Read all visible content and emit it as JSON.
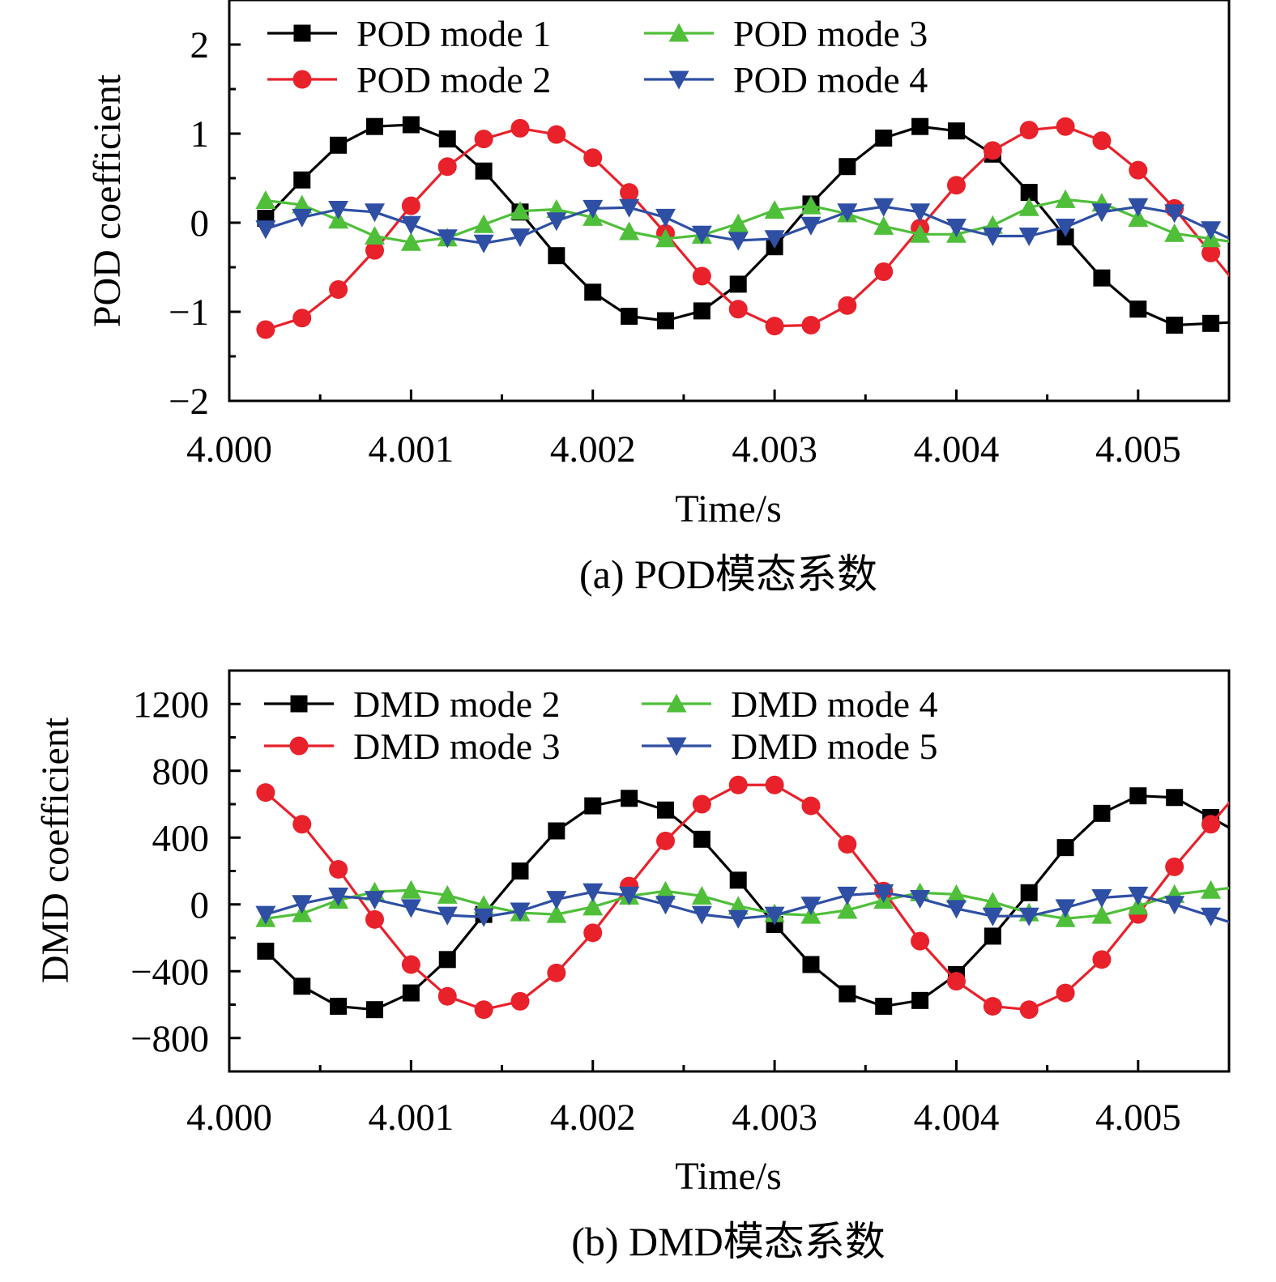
{
  "chart_data": [
    {
      "type": "line",
      "title": "",
      "caption": "(a) POD模态系数",
      "xlabel": "Time/s",
      "ylabel": "POD coefficient",
      "xlim": [
        4.0,
        4.0055
      ],
      "ylim": [
        -2,
        2.5
      ],
      "xticks": [
        4.0,
        4.001,
        4.002,
        4.003,
        4.004,
        4.005
      ],
      "xtick_labels": [
        "4.000",
        "4.001",
        "4.002",
        "4.003",
        "4.004",
        "4.005"
      ],
      "yticks": [
        -2,
        -1,
        0,
        1,
        2
      ],
      "ytick_labels": [
        "−2",
        "−1",
        "0",
        "1",
        "2"
      ],
      "legend_position": "top",
      "x": [
        4.0002,
        4.0004,
        4.0006,
        4.0008,
        4.001,
        4.0012,
        4.0014,
        4.0016,
        4.0018,
        4.002,
        4.0022,
        4.0024,
        4.0026,
        4.0028,
        4.003,
        4.0032,
        4.0034,
        4.0036,
        4.0038,
        4.004,
        4.0042,
        4.0044,
        4.0046,
        4.0048,
        4.005,
        4.0052,
        4.0054
      ],
      "series": [
        {
          "name": "POD mode 1",
          "color": "#000000",
          "marker": "square",
          "values": [
            0.05,
            0.48,
            0.87,
            1.08,
            1.1,
            0.94,
            0.58,
            0.12,
            -0.37,
            -0.78,
            -1.05,
            -1.1,
            -0.99,
            -0.69,
            -0.27,
            0.21,
            0.63,
            0.95,
            1.08,
            1.03,
            0.77,
            0.34,
            -0.16,
            -0.62,
            -0.97,
            -1.15,
            -1.13
          ]
        },
        {
          "name": "POD mode 2",
          "color": "#e8212b",
          "marker": "circle",
          "values": [
            -1.2,
            -1.07,
            -0.75,
            -0.31,
            0.19,
            0.63,
            0.94,
            1.06,
            0.99,
            0.73,
            0.34,
            -0.12,
            -0.6,
            -0.97,
            -1.16,
            -1.15,
            -0.93,
            -0.55,
            -0.06,
            0.42,
            0.81,
            1.04,
            1.08,
            0.92,
            0.59,
            0.16,
            -0.34
          ]
        },
        {
          "name": "POD mode 3",
          "color": "#4fbf3a",
          "marker": "triangle-up",
          "values": [
            0.25,
            0.2,
            0.03,
            -0.15,
            -0.22,
            -0.17,
            -0.02,
            0.13,
            0.15,
            0.06,
            -0.1,
            -0.18,
            -0.14,
            -0.01,
            0.14,
            0.19,
            0.1,
            -0.04,
            -0.13,
            -0.13,
            -0.03,
            0.17,
            0.26,
            0.22,
            0.05,
            -0.12,
            -0.18
          ]
        },
        {
          "name": "POD mode 4",
          "color": "#2e4fa3",
          "marker": "triangle-down",
          "values": [
            -0.07,
            0.06,
            0.15,
            0.12,
            -0.02,
            -0.17,
            -0.23,
            -0.16,
            0.02,
            0.16,
            0.17,
            0.06,
            -0.13,
            -0.2,
            -0.18,
            -0.03,
            0.12,
            0.18,
            0.12,
            -0.05,
            -0.15,
            -0.15,
            -0.05,
            0.12,
            0.18,
            0.11,
            -0.08
          ]
        }
      ]
    },
    {
      "type": "line",
      "title": "",
      "caption": "(b) DMD模态系数",
      "xlabel": "Time/s",
      "ylabel": "DMD coefficient",
      "xlim": [
        4.0,
        4.0055
      ],
      "ylim": [
        -1000,
        1400
      ],
      "xticks": [
        4.0,
        4.001,
        4.002,
        4.003,
        4.004,
        4.005
      ],
      "xtick_labels": [
        "4.000",
        "4.001",
        "4.002",
        "4.003",
        "4.004",
        "4.005"
      ],
      "yticks": [
        -800,
        -400,
        0,
        400,
        800,
        1200
      ],
      "ytick_labels": [
        "−800",
        "−400",
        "0",
        "400",
        "800",
        "1200"
      ],
      "legend_position": "top",
      "x": [
        4.0002,
        4.0004,
        4.0006,
        4.0008,
        4.001,
        4.0012,
        4.0014,
        4.0016,
        4.0018,
        4.002,
        4.0022,
        4.0024,
        4.0026,
        4.0028,
        4.003,
        4.0032,
        4.0034,
        4.0036,
        4.0038,
        4.004,
        4.0042,
        4.0044,
        4.0046,
        4.0048,
        4.005,
        4.0052,
        4.0054
      ],
      "series": [
        {
          "name": "DMD mode 2",
          "color": "#000000",
          "marker": "square",
          "values": [
            -280,
            -490,
            -610,
            -630,
            -530,
            -330,
            -60,
            200,
            440,
            590,
            635,
            565,
            390,
            145,
            -120,
            -360,
            -535,
            -610,
            -575,
            -420,
            -190,
            70,
            340,
            545,
            650,
            640,
            520
          ]
        },
        {
          "name": "DMD mode 3",
          "color": "#e8212b",
          "marker": "circle",
          "values": [
            670,
            480,
            210,
            -90,
            -360,
            -550,
            -630,
            -580,
            -410,
            -170,
            110,
            380,
            600,
            715,
            715,
            590,
            360,
            80,
            -220,
            -460,
            -610,
            -630,
            -530,
            -330,
            -60,
            225,
            480
          ]
        },
        {
          "name": "DMD mode 4",
          "color": "#4fbf3a",
          "marker": "triangle-up",
          "values": [
            -85,
            -55,
            25,
            75,
            85,
            55,
            -5,
            -50,
            -60,
            -15,
            50,
            80,
            50,
            -10,
            -55,
            -65,
            -35,
            25,
            70,
            60,
            15,
            -50,
            -85,
            -65,
            -10,
            60,
            85
          ]
        },
        {
          "name": "DMD mode 5",
          "color": "#2e4fa3",
          "marker": "triangle-down",
          "values": [
            -60,
            5,
            50,
            30,
            -20,
            -65,
            -75,
            -40,
            30,
            75,
            55,
            0,
            -60,
            -85,
            -65,
            -5,
            55,
            70,
            35,
            -25,
            -70,
            -70,
            -20,
            40,
            55,
            0,
            -70
          ]
        }
      ]
    }
  ]
}
